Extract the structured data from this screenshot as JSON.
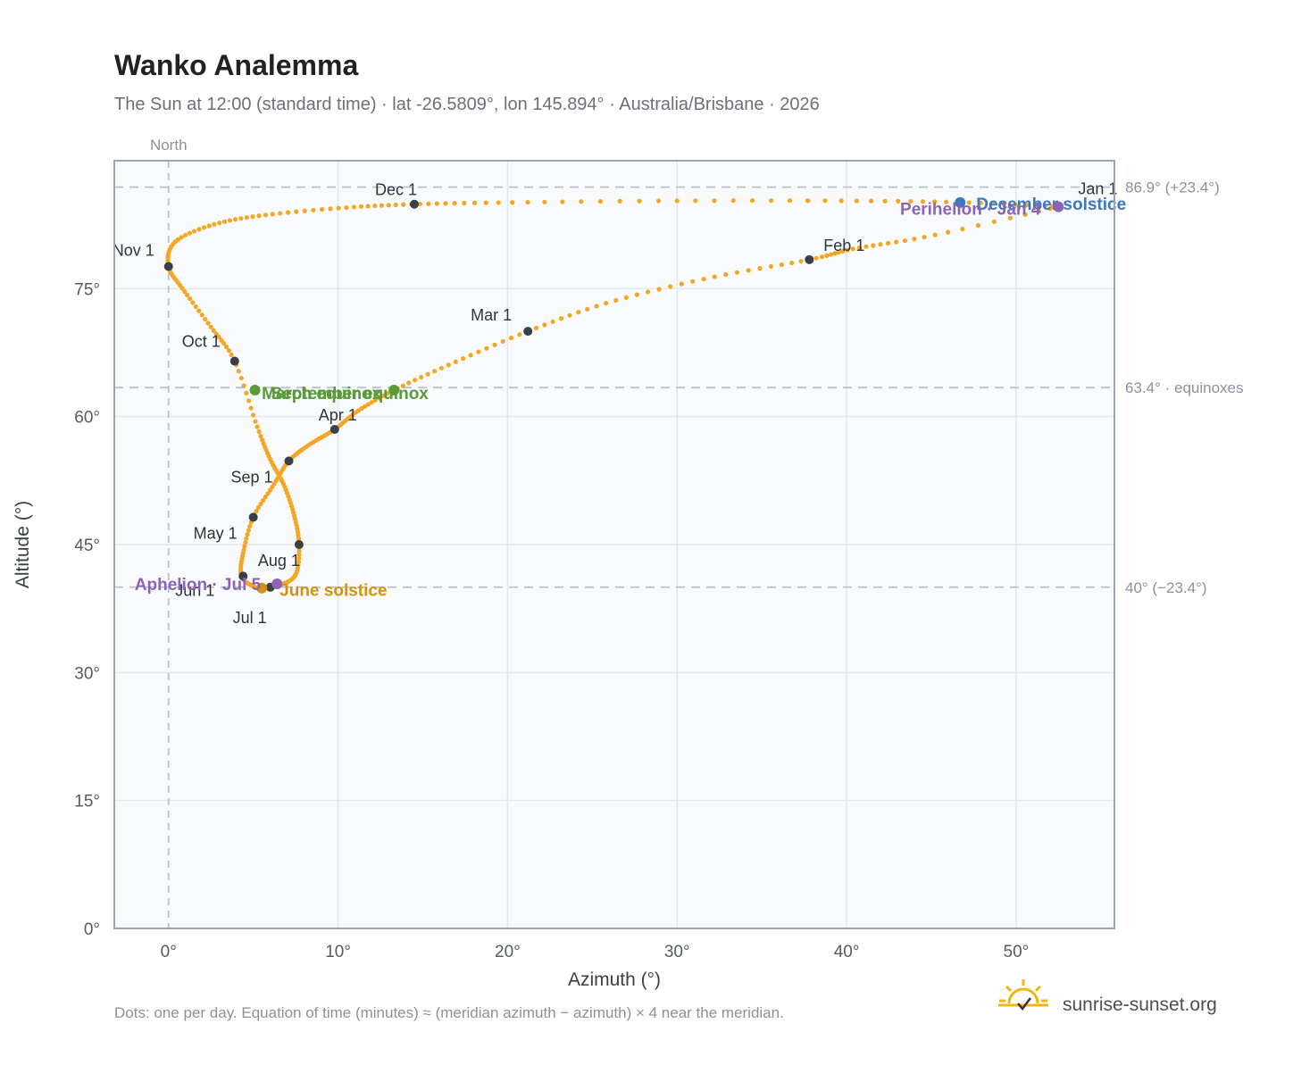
{
  "header": {
    "title": "Wanko Analemma",
    "subtitle": "The Sun at 12:00 (standard time) · lat -26.5809°, lon 145.894° · Australia/Brisbane · 2026"
  },
  "footer": {
    "note": "Dots: one per day. Equation of time (minutes) ≈ (meridian azimuth − azimuth) × 4 near the meridian.",
    "brand": "sunrise-sunset.org",
    "brand_icon": "sun-icon"
  },
  "colors": {
    "path": "#f5a623",
    "month_marker": "#3b4048",
    "equinox": "#5a9a3a",
    "june_solstice": "#d4920e",
    "december_solstice": "#3a78c2",
    "apsis": "#8e63b5",
    "reference_line": "#b7c3cf",
    "plot_background": "#f8fafc",
    "frame": "#9aa5b1"
  },
  "chart_data": {
    "type": "scatter",
    "title": "Wanko Analemma",
    "xlabel": "Azimuth (°)",
    "ylabel": "Altitude (°)",
    "xlim": [
      -3.2,
      55.8
    ],
    "ylim": [
      0,
      90
    ],
    "x_ticks": [
      0,
      10,
      20,
      30,
      40,
      50
    ],
    "x_tick_labels": [
      "0°",
      "10°",
      "20°",
      "30°",
      "40°",
      "50°"
    ],
    "y_ticks": [
      0,
      15,
      30,
      45,
      60,
      75
    ],
    "y_tick_labels": [
      "0°",
      "15°",
      "30°",
      "45°",
      "60°",
      "75°"
    ],
    "grid": true,
    "north_label": "North",
    "north_azimuth": 0,
    "reference_lines": [
      {
        "altitude": 86.9,
        "label": "86.9° (+23.4°)"
      },
      {
        "altitude": 63.4,
        "label": "63.4° · equinoxes"
      },
      {
        "altitude": 40,
        "label": "40° (−23.4°)"
      }
    ],
    "series": [
      {
        "name": "daily positions",
        "x": [
          52.5,
          45.0,
          40.5,
          37.8,
          32.0,
          26.0,
          21.2,
          16.8,
          13.3,
          11.2,
          9.8,
          8.3,
          7.1,
          6.2,
          5.0,
          4.4,
          4.3,
          5.0,
          5.5,
          6.5,
          7.5,
          7.7,
          7.4,
          6.8,
          6.0,
          5.2,
          3.9,
          2.5,
          0.9,
          0.0,
          0.4,
          2.8,
          6.0,
          10.5,
          14.5,
          20.0,
          30.0,
          40.0,
          47.0,
          52.5
        ],
        "y": [
          84.6,
          81.2,
          79.7,
          78.4,
          76.3,
          73.4,
          70.0,
          66.3,
          63.1,
          60.7,
          58.5,
          56.7,
          54.8,
          52.0,
          48.2,
          44.0,
          41.3,
          40.1,
          39.9,
          40.2,
          41.5,
          45.0,
          48.5,
          52.0,
          55.0,
          59.0,
          66.5,
          70.5,
          74.8,
          77.6,
          80.5,
          82.6,
          83.7,
          84.5,
          84.9,
          85.1,
          85.3,
          85.3,
          85.1,
          84.6
        ]
      }
    ],
    "month_markers": [
      {
        "label": "Jan 1",
        "x": 52.5,
        "y": 84.6
      },
      {
        "label": "Feb 1",
        "x": 37.8,
        "y": 78.4
      },
      {
        "label": "Mar 1",
        "x": 21.2,
        "y": 70.0
      },
      {
        "label": "Apr 1",
        "x": 9.8,
        "y": 58.5
      },
      {
        "label": "May 1",
        "x": 5.0,
        "y": 48.2
      },
      {
        "label": "Jun 1",
        "x": 4.4,
        "y": 41.3
      },
      {
        "label": "Jul 1",
        "x": 6.0,
        "y": 40.0
      },
      {
        "label": "Aug 1",
        "x": 7.7,
        "y": 45.0
      },
      {
        "label": "Sep 1",
        "x": 7.1,
        "y": 54.8
      },
      {
        "label": "Oct 1",
        "x": 3.9,
        "y": 66.5
      },
      {
        "label": "Nov 1",
        "x": 0.0,
        "y": 77.6
      },
      {
        "label": "Dec 1",
        "x": 14.5,
        "y": 84.9
      }
    ],
    "events": [
      {
        "label": "March equinox",
        "x": 13.3,
        "y": 63.1,
        "color": "#5a9a3a"
      },
      {
        "label": "September equinox",
        "x": 5.1,
        "y": 63.1,
        "color": "#5a9a3a"
      },
      {
        "label": "June solstice",
        "x": 5.5,
        "y": 39.9,
        "color": "#d4920e"
      },
      {
        "label": "December solstice",
        "x": 46.7,
        "y": 85.1,
        "color": "#3a78c2"
      },
      {
        "label": "Perihelion · Jan 4",
        "x": 52.5,
        "y": 84.6,
        "color": "#8e63b5"
      },
      {
        "label": "Aphelion · Jul 5",
        "x": 6.4,
        "y": 40.4,
        "color": "#8e63b5"
      }
    ]
  }
}
